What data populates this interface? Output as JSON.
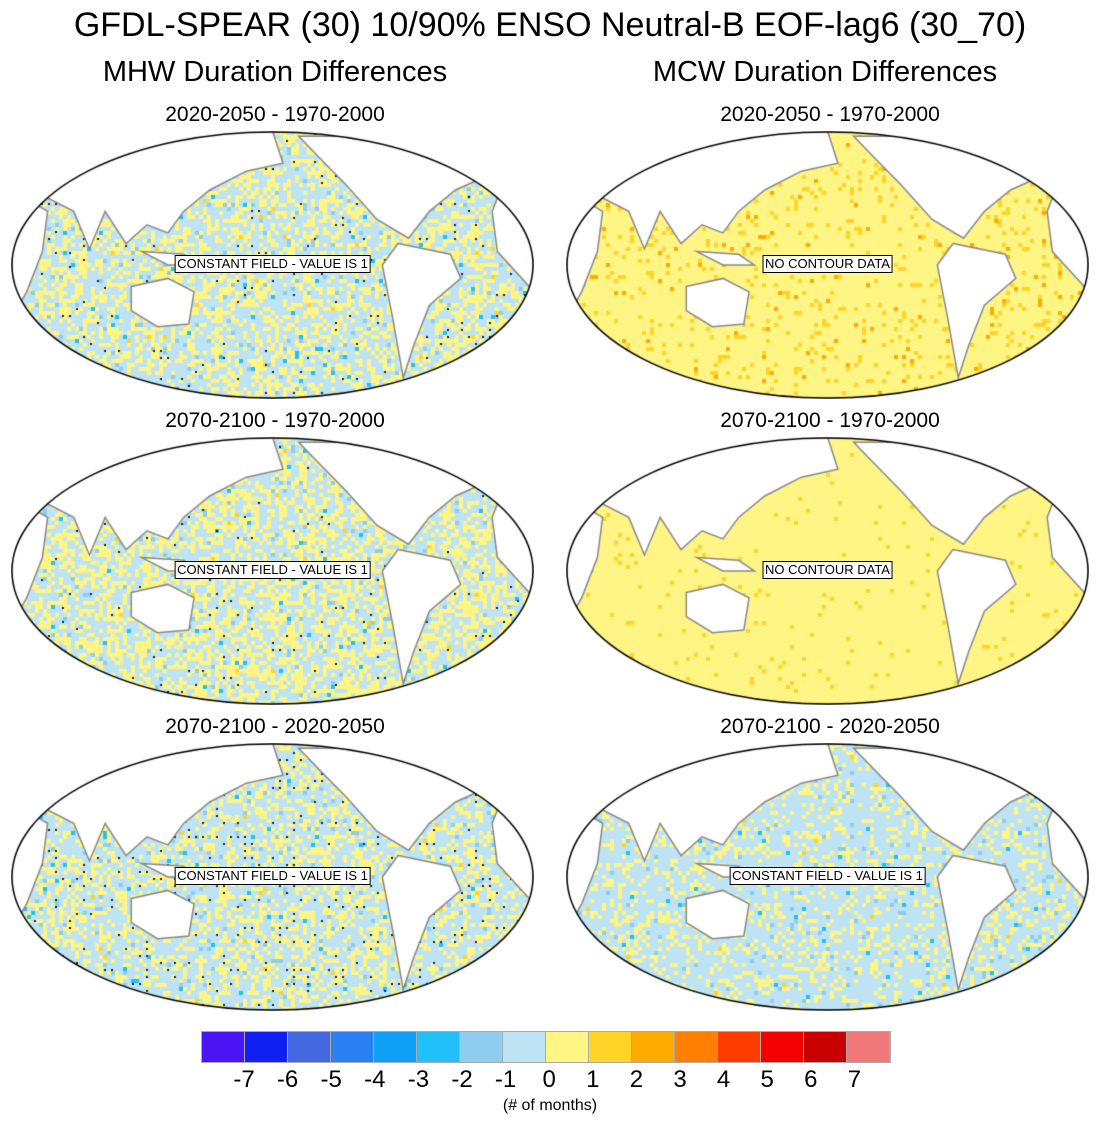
{
  "title": "GFDL-SPEAR (30) 10/90% ENSO Neutral-B EOF-lag6 (30_70)",
  "columns": [
    "MHW Duration Differences",
    "MCW Duration Differences"
  ],
  "panels": [
    {
      "title": "2020-2050 - 1970-2000",
      "label": "CONSTANT FIELD - VALUE IS 1"
    },
    {
      "title": "2020-2050 - 1970-2000",
      "label": "NO CONTOUR DATA"
    },
    {
      "title": "2070-2100 - 1970-2000",
      "label": "CONSTANT FIELD - VALUE IS 1"
    },
    {
      "title": "2070-2100 - 1970-2000",
      "label": "NO CONTOUR DATA"
    },
    {
      "title": "2070-2100 - 2020-2050",
      "label": "CONSTANT FIELD - VALUE IS 1"
    },
    {
      "title": "2070-2100 - 2020-2050",
      "label": "CONSTANT FIELD - VALUE IS 1"
    }
  ],
  "colorbar": {
    "ticks": [
      "-7",
      "-6",
      "-5",
      "-4",
      "-3",
      "-2",
      "-1",
      "0",
      "1",
      "2",
      "3",
      "4",
      "5",
      "6",
      "7"
    ],
    "colors": [
      "#4b14f5",
      "#1020f5",
      "#4468e0",
      "#2a80f0",
      "#10a0f8",
      "#22c0f8",
      "#8ecdef",
      "#bde3f5",
      "#fff585",
      "#ffd426",
      "#ffab00",
      "#ff8000",
      "#ff3c00",
      "#f50000",
      "#c80000",
      "#f07878"
    ],
    "units": "(# of months)"
  }
}
